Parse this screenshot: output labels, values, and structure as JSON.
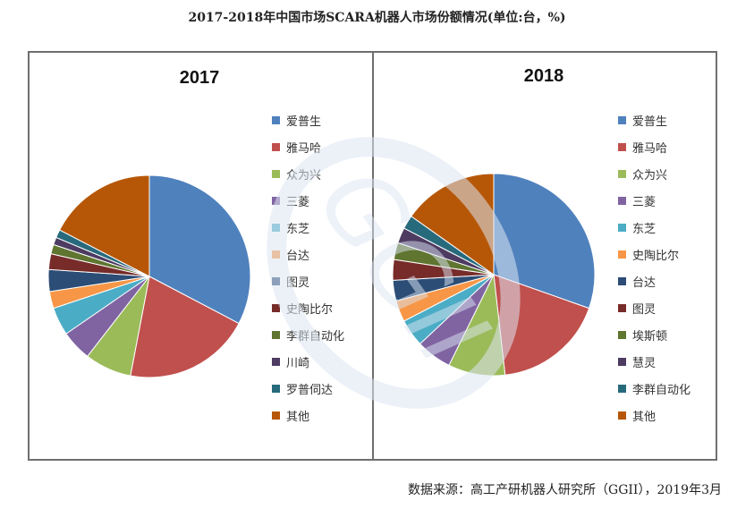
{
  "header": {
    "title": "2017-2018年中国市场SCARA机器人市场份额情况(单位:台，%)"
  },
  "footer": {
    "source": "数据来源：高工产研机器人研究所（GGII），2019年3月"
  },
  "watermark": {
    "text": "GGII"
  },
  "colors": {
    "爱普生": "#4f81bd",
    "雅马哈": "#c0504d",
    "众为兴": "#9bbb59",
    "三菱": "#8064a2",
    "东芝": "#4bacc6",
    "台达": "#f79646",
    "图灵": "#2c4d75",
    "史陶比尔": "#772c2a",
    "李群自动化": "#5f7530",
    "川崎": "#4d3b62",
    "罗普伺达": "#276a7c",
    "其他": "#b65708",
    "埃斯顿": "#5f7530",
    "慧灵": "#4d3b62"
  },
  "chart_data": [
    {
      "type": "pie",
      "title": "2017",
      "legend_position": "right",
      "labels": [
        "爱普生",
        "雅马哈",
        "众为兴",
        "三菱",
        "东芝",
        "台达",
        "图灵",
        "史陶比尔",
        "李群自动化",
        "川崎",
        "罗普伺达",
        "其他"
      ],
      "values": [
        32.7,
        20.3,
        7.5,
        4.9,
        4.5,
        2.7,
        3.5,
        2.5,
        1.5,
        1.2,
        1.3,
        17.4
      ],
      "colors": [
        "#4f81bd",
        "#c0504d",
        "#9bbb59",
        "#8064a2",
        "#4bacc6",
        "#f79646",
        "#2c4d75",
        "#772c2a",
        "#5f7530",
        "#4d3b62",
        "#276a7c",
        "#b65708"
      ]
    },
    {
      "type": "pie",
      "title": "2018",
      "legend_position": "right",
      "labels": [
        "爱普生",
        "雅马哈",
        "众为兴",
        "三菱",
        "东芝",
        "史陶比尔",
        "台达",
        "图灵",
        "埃斯顿",
        "慧灵",
        "李群自动化",
        "其他"
      ],
      "values": [
        30.4,
        17.8,
        9.1,
        5.7,
        4.4,
        3.4,
        3.3,
        3.3,
        2.7,
        2.5,
        2.2,
        15.2
      ],
      "colors": [
        "#4f81bd",
        "#c0504d",
        "#9bbb59",
        "#8064a2",
        "#4bacc6",
        "#f79646",
        "#2c4d75",
        "#772c2a",
        "#5f7530",
        "#4d3b62",
        "#276a7c",
        "#b65708"
      ]
    }
  ]
}
